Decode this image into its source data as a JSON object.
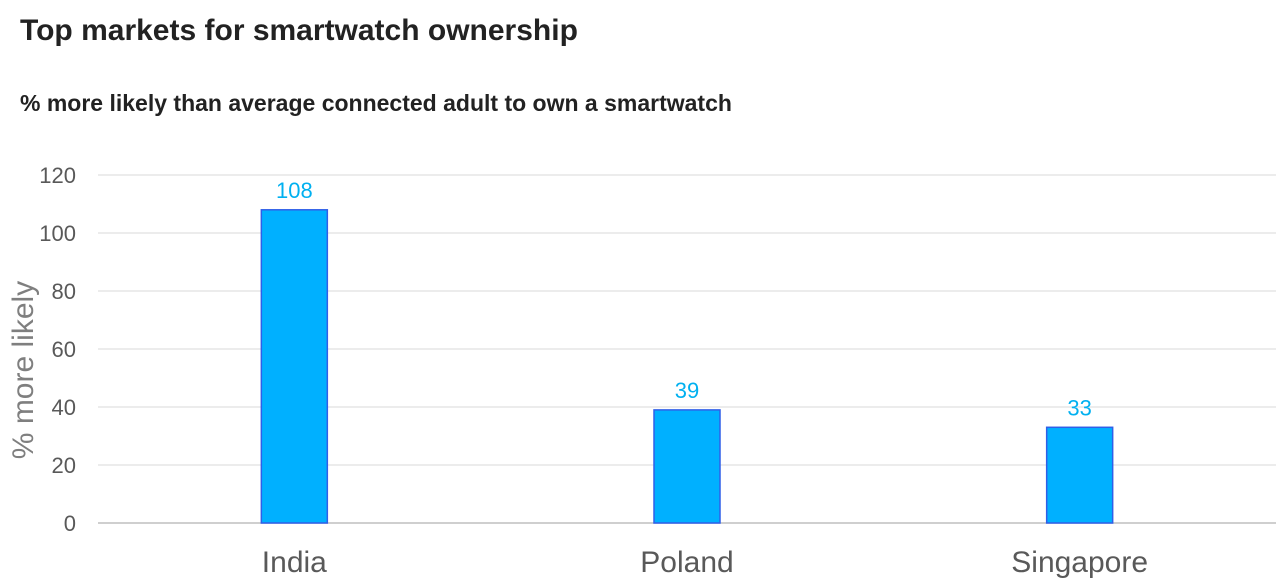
{
  "chart_data": {
    "type": "bar",
    "title": "Top markets for smartwatch ownership",
    "subtitle": "% more likely than average connected adult to own a smartwatch",
    "xlabel": "",
    "ylabel": "% more likely",
    "categories": [
      "India",
      "Poland",
      "Singapore"
    ],
    "values": [
      108,
      39,
      33
    ],
    "data_labels": [
      "108",
      "39",
      "33"
    ],
    "ylim": [
      0,
      120
    ],
    "yticks": [
      0,
      20,
      40,
      60,
      80,
      100,
      120
    ],
    "ytick_labels": [
      "0",
      "20",
      "40",
      "60",
      "80",
      "100",
      "120"
    ],
    "grid": true,
    "legend": "none",
    "colors": {
      "bar_fill": "#00B0FF",
      "bar_stroke": "#2F5FE8",
      "data_label": "#00B0F0"
    }
  }
}
